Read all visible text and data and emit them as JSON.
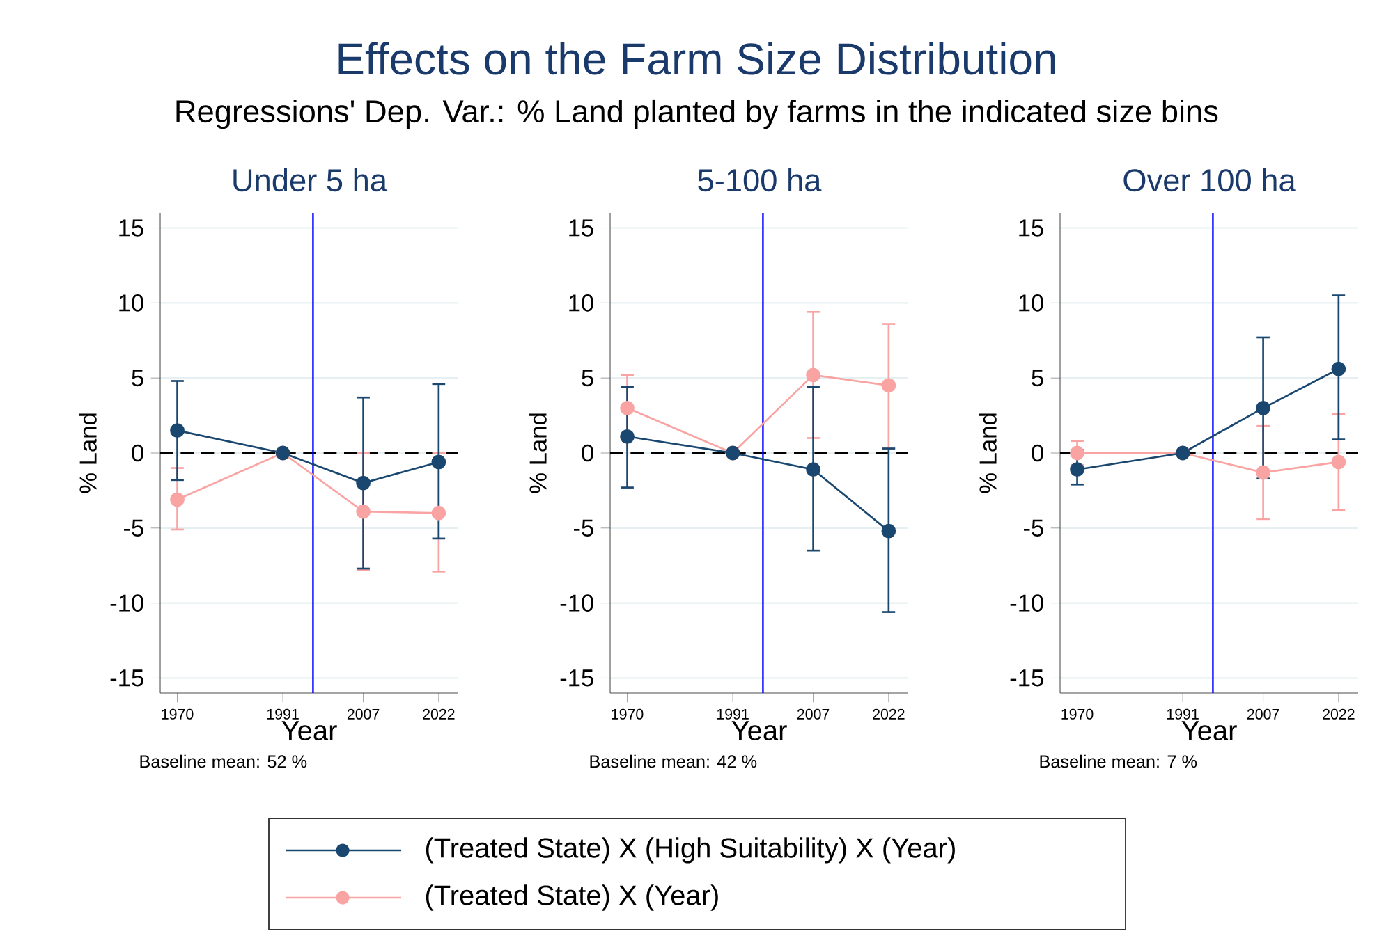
{
  "chart_data": [
    {
      "type": "line",
      "title": "Under 5 ha",
      "xlabel": "Year",
      "ylabel": "% Land",
      "annotations": [
        "Effects on the Farm Size Distribution",
        "Regressions' Dep. Var.: % Land planted by farms in the indicated size bins",
        "Baseline mean: 52 %"
      ],
      "x": [
        1970,
        1991,
        2007,
        2022
      ],
      "xlim": [
        1966.6,
        2025.9
      ],
      "xticks": [
        1970,
        1991,
        2007,
        2022
      ],
      "ylim": [
        -16,
        16
      ],
      "yticks": [
        -15,
        -10,
        -5,
        0,
        5,
        10,
        15
      ],
      "grid": "y",
      "marker": "circle",
      "legend": "bottom",
      "ref_lines": [
        {
          "axis": "y",
          "value": 0,
          "color": "#000000",
          "line_style": "dashed"
        },
        {
          "axis": "x",
          "value": 1997,
          "color": "#0000ff"
        }
      ],
      "series": [
        {
          "name": "(Treated State) X (Year)",
          "color": "#f9a3a3",
          "values": [
            -3.1,
            0,
            -3.9,
            -4.0
          ],
          "errors": [
            [
              -5.1,
              -1.0
            ],
            null,
            [
              -7.8,
              0.0
            ],
            [
              -7.9,
              0.0
            ]
          ]
        },
        {
          "name": "(Treated State) X (High Suitability) X (Year)",
          "color": "#1a476f",
          "values": [
            1.5,
            0,
            -2.0,
            -0.6
          ],
          "errors": [
            [
              -1.8,
              4.8
            ],
            null,
            [
              -7.7,
              3.7
            ],
            [
              -5.7,
              4.6
            ]
          ]
        }
      ]
    },
    {
      "type": "line",
      "title": "5-100 ha",
      "xlabel": "Year",
      "ylabel": "% Land",
      "annotations": [
        "Baseline mean: 42 %"
      ],
      "x": [
        1970,
        1991,
        2007,
        2022
      ],
      "xlim": [
        1966.6,
        2025.9
      ],
      "xticks": [
        1970,
        1991,
        2007,
        2022
      ],
      "ylim": [
        -16,
        16
      ],
      "yticks": [
        -15,
        -10,
        -5,
        0,
        5,
        10,
        15
      ],
      "grid": "y",
      "marker": "circle",
      "ref_lines": [
        {
          "axis": "y",
          "value": 0,
          "color": "#000000",
          "line_style": "dashed"
        },
        {
          "axis": "x",
          "value": 1997,
          "color": "#0000ff"
        }
      ],
      "series": [
        {
          "color": "#f9a3a3",
          "values": [
            3.0,
            0,
            5.2,
            4.5
          ],
          "errors": [
            [
              0.9,
              5.2
            ],
            null,
            [
              1.0,
              9.4
            ],
            [
              0.3,
              8.6
            ]
          ]
        },
        {
          "color": "#1a476f",
          "values": [
            1.1,
            0,
            -1.1,
            -5.2
          ],
          "errors": [
            [
              -2.3,
              4.4
            ],
            null,
            [
              -6.5,
              4.4
            ],
            [
              -10.6,
              0.3
            ]
          ]
        }
      ]
    },
    {
      "type": "line",
      "title": "Over 100 ha",
      "xlabel": "Year",
      "ylabel": "% Land",
      "annotations": [
        "Baseline mean: 7 %"
      ],
      "x": [
        1970,
        1991,
        2007,
        2022
      ],
      "xlim": [
        1966.6,
        2025.9
      ],
      "xticks": [
        1970,
        1991,
        2007,
        2022
      ],
      "ylim": [
        -16,
        16
      ],
      "yticks": [
        -15,
        -10,
        -5,
        0,
        5,
        10,
        15
      ],
      "grid": "y",
      "marker": "circle",
      "ref_lines": [
        {
          "axis": "y",
          "value": 0,
          "color": "#000000",
          "line_style": "dashed"
        },
        {
          "axis": "x",
          "value": 1997,
          "color": "#0000ff"
        }
      ],
      "series": [
        {
          "color": "#f9a3a3",
          "values": [
            0.0,
            0,
            -1.3,
            -0.6
          ],
          "errors": [
            [
              -0.8,
              0.8
            ],
            null,
            [
              -4.4,
              1.8
            ],
            [
              -3.8,
              2.6
            ]
          ]
        },
        {
          "color": "#1a476f",
          "values": [
            -1.1,
            0,
            3.0,
            5.6
          ],
          "errors": [
            [
              -2.1,
              0.2
            ],
            null,
            [
              -1.7,
              7.7
            ],
            [
              0.9,
              10.5
            ]
          ]
        }
      ]
    }
  ]
}
